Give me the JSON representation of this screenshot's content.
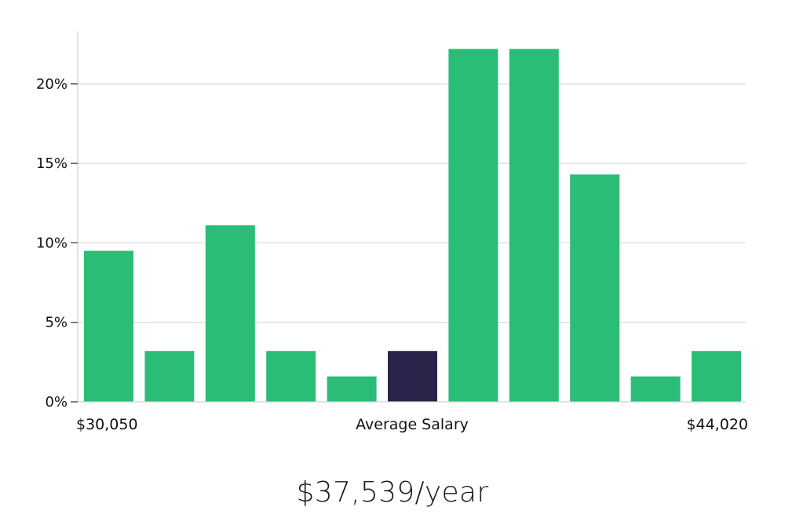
{
  "chart_data": {
    "type": "bar",
    "title": "",
    "xlabel": "Average Salary",
    "ylabel": "",
    "x_range_labels": {
      "min": "$30,050",
      "max": "$44,020"
    },
    "y_ticks": [
      "0%",
      "5%",
      "10%",
      "15%",
      "20%"
    ],
    "ylim": [
      0,
      23.3
    ],
    "grid": true,
    "values": [
      9.5,
      3.2,
      11.1,
      3.2,
      1.6,
      3.2,
      22.2,
      22.2,
      14.3,
      1.6,
      3.2
    ],
    "highlight_index": 5,
    "colors": {
      "bar": "#2bbd77",
      "highlight": "#29244a",
      "grid": "#e2e2e2",
      "axis": "#d0d0d0"
    }
  },
  "summary": {
    "salary_text": "$37,539/year"
  }
}
